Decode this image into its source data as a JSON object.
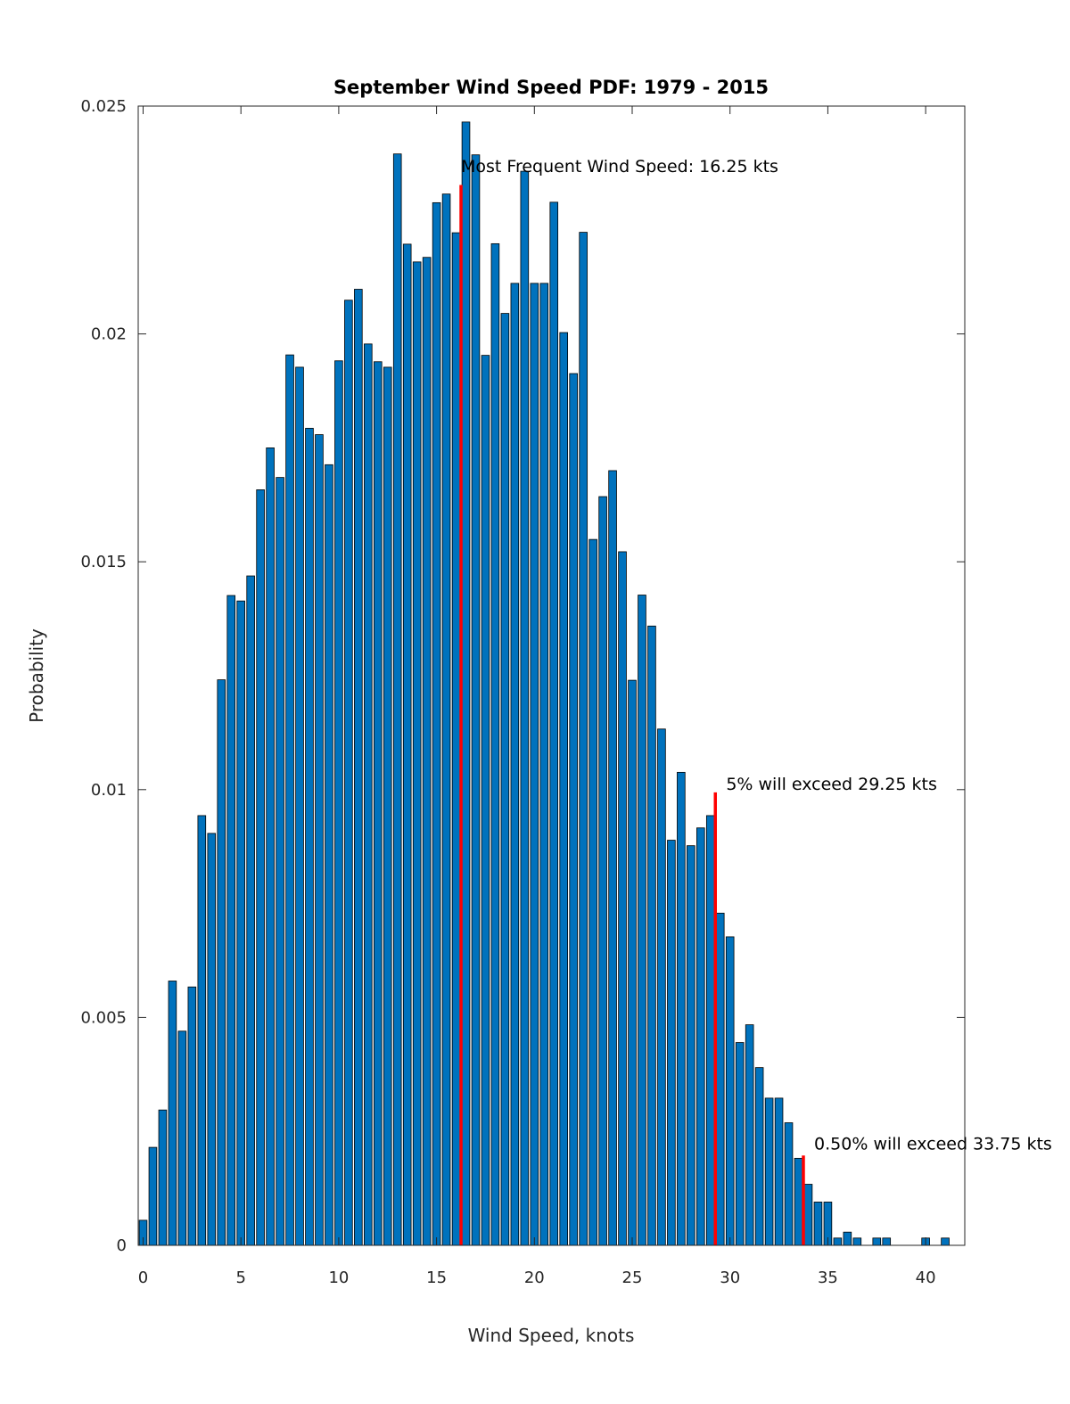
{
  "colors": {
    "bar_fill": "#0072bd",
    "bar_stroke": "#000000",
    "marker": "#ff0000",
    "axis": "#262626"
  },
  "chart_data": {
    "type": "bar",
    "title": "September Wind Speed PDF: 1979 - 2015",
    "xlabel": "Wind Speed, knots",
    "ylabel": "Probability",
    "xlim": [
      -0.25,
      42.0
    ],
    "ylim": [
      0,
      0.025
    ],
    "x_ticks": [
      0,
      5,
      10,
      15,
      20,
      25,
      30,
      35,
      40
    ],
    "y_ticks": [
      0,
      0.005,
      0.01,
      0.015,
      0.02,
      0.025
    ],
    "y_tick_labels": [
      "0",
      "0.005",
      "0.01",
      "0.015",
      "0.02",
      "0.025"
    ],
    "bin_width": 0.5,
    "x": [
      0,
      0.5,
      1,
      1.5,
      2,
      2.5,
      3,
      3.5,
      4,
      4.5,
      5,
      5.5,
      6,
      6.5,
      7,
      7.5,
      8,
      8.5,
      9,
      9.5,
      10,
      10.5,
      11,
      11.5,
      12,
      12.5,
      13,
      13.5,
      14,
      14.5,
      15,
      15.5,
      16,
      16.5,
      17,
      17.5,
      18,
      18.5,
      19,
      19.5,
      20,
      20.5,
      21,
      21.5,
      22,
      22.5,
      23,
      23.5,
      24,
      24.5,
      25,
      25.5,
      26,
      26.5,
      27,
      27.5,
      28,
      28.5,
      29,
      29.5,
      30,
      30.5,
      31,
      31.5,
      32,
      32.5,
      33,
      33.5,
      34,
      34.5,
      35,
      35.5,
      36,
      36.5,
      37,
      37.5,
      38,
      38.5,
      39,
      39.5,
      40,
      40.5,
      41
    ],
    "values": [
      0.00055,
      0.00215,
      0.00297,
      0.0058,
      0.0047,
      0.00567,
      0.00943,
      0.00904,
      0.01241,
      0.01426,
      0.01414,
      0.01469,
      0.01658,
      0.0175,
      0.01685,
      0.01954,
      0.01927,
      0.01793,
      0.01779,
      0.01713,
      0.01941,
      0.02074,
      0.02098,
      0.01978,
      0.01939,
      0.01927,
      0.02395,
      0.02197,
      0.02158,
      0.02168,
      0.02288,
      0.02307,
      0.02222,
      0.02465,
      0.02393,
      0.01953,
      0.02198,
      0.02045,
      0.02111,
      0.02357,
      0.02111,
      0.02111,
      0.02289,
      0.02003,
      0.01913,
      0.02223,
      0.01549,
      0.01643,
      0.017,
      0.01522,
      0.0124,
      0.01427,
      0.01359,
      0.01133,
      0.00889,
      0.01038,
      0.00877,
      0.00916,
      0.00943,
      0.00729,
      0.00677,
      0.00445,
      0.00484,
      0.0039,
      0.00323,
      0.00323,
      0.00269,
      0.00191,
      0.00134,
      0.00095,
      0.00095,
      0.00016,
      0.00029,
      0.00016,
      0,
      0.00016,
      0.00016,
      0,
      0,
      0,
      0.00016,
      0,
      0.00016
    ],
    "markers": [
      {
        "x": 16.25,
        "y": 0.02327,
        "label": "Most Frequent Wind Speed: 16.25 kts",
        "label_x": 16.25,
        "label_y": 0.02355
      },
      {
        "x": 29.25,
        "y": 0.00994,
        "label": "5% will exceed 29.25 kts",
        "label_x": 29.8,
        "label_y": 0.01
      },
      {
        "x": 33.75,
        "y": 0.00197,
        "label": "0.50% will exceed 33.75 kts",
        "label_x": 34.3,
        "label_y": 0.0021
      }
    ]
  }
}
